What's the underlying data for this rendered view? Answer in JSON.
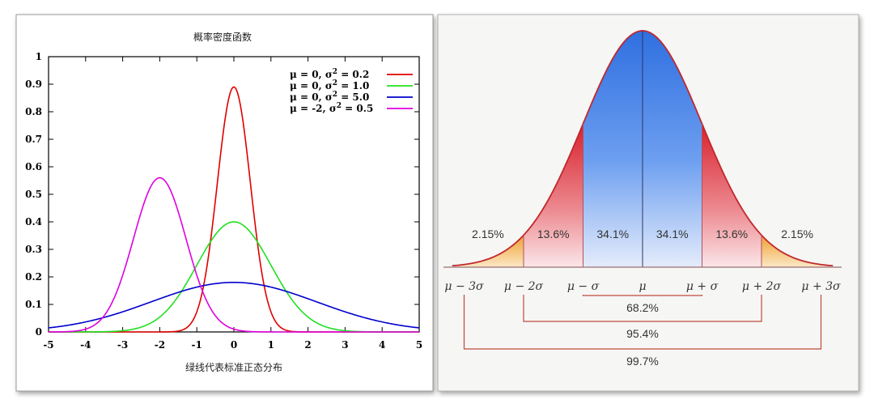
{
  "chart_data": [
    {
      "type": "line",
      "title": "概率密度函数",
      "xlabel": "绿线代表标准正态分布",
      "ylabel": "",
      "xlim": [
        -5,
        5
      ],
      "ylim": [
        0,
        1
      ],
      "xticks": [
        "-5",
        "-4",
        "-3",
        "-2",
        "-1",
        "0",
        "1",
        "2",
        "3",
        "4",
        "5"
      ],
      "yticks": [
        "0",
        "0.1",
        "0.2",
        "0.3",
        "0.4",
        "0.5",
        "0.6",
        "0.7",
        "0.8",
        "0.9",
        "1"
      ],
      "legend_position": "top-right",
      "series": [
        {
          "name": "μ = 0, σ² = 0.2",
          "label_main": "μ = 0, σ",
          "label_sup": "2",
          "label_tail": " = 0.2",
          "mu": 0,
          "var": 0.2,
          "color": "#e00000",
          "peak": 0.89
        },
        {
          "name": "μ = 0, σ² = 1.0",
          "label_main": "μ = 0, σ",
          "label_sup": "2",
          "label_tail": " = 1.0",
          "mu": 0,
          "var": 1.0,
          "color": "#22e022",
          "peak": 0.4
        },
        {
          "name": "μ = 0, σ² = 5.0",
          "label_main": "μ = 0, σ",
          "label_sup": "2",
          "label_tail": " = 5.0",
          "mu": 0,
          "var": 5.0,
          "color": "#0000cc",
          "peak": 0.18
        },
        {
          "name": "μ = -2, σ² = 0.5",
          "label_main": "μ = -2, σ",
          "label_sup": "2",
          "label_tail": " = 0.5",
          "mu": -2,
          "var": 0.5,
          "color": "#e000e0",
          "peak": 0.56
        }
      ]
    },
    {
      "type": "area",
      "title": "",
      "regions": [
        {
          "label": "2.15%",
          "value": 2.15
        },
        {
          "label": "13.6%",
          "value": 13.6
        },
        {
          "label": "34.1%",
          "value": 34.1
        },
        {
          "label": "34.1%",
          "value": 34.1
        },
        {
          "label": "13.6%",
          "value": 13.6
        },
        {
          "label": "2.15%",
          "value": 2.15
        }
      ],
      "axis_labels": [
        "μ − 3σ",
        "μ − 2σ",
        "μ − σ",
        "μ",
        "μ + σ",
        "μ + 2σ",
        "μ + 3σ"
      ],
      "brackets": [
        {
          "label": "68.2%",
          "value": 68.2,
          "span": "μ − σ to μ + σ"
        },
        {
          "label": "95.4%",
          "value": 95.4,
          "span": "μ − 2σ to μ + 2σ"
        },
        {
          "label": "99.7%",
          "value": 99.7,
          "span": "μ − 3σ to μ + 3σ"
        }
      ],
      "colors": {
        "center": "#2f6fe0",
        "middle": "#e0303a",
        "tail": "#f0b040",
        "curve": "#c0282c",
        "bracket": "#c04a3a"
      }
    }
  ]
}
